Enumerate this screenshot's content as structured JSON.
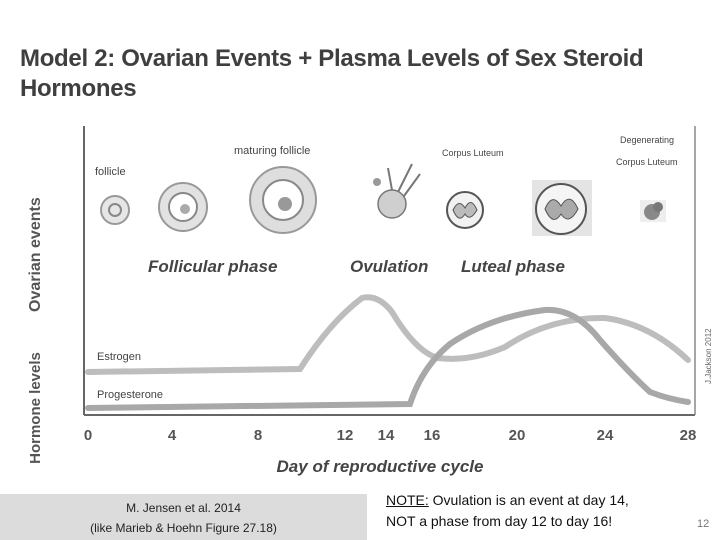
{
  "title": "Model 2: Ovarian Events + Plasma Levels of Sex Steroid Hormones",
  "figure": {
    "ovarian_axis_label": "Ovarian events",
    "hormone_axis_label": "Hormone levels",
    "stage_labels": {
      "follicle": "follicle",
      "maturing_follicle": "maturing follicle",
      "corpus_luteum": "Corpus Luteum",
      "degenerating_1": "Degenerating",
      "degenerating_2": "Corpus Luteum"
    },
    "phase_labels": {
      "follicular": "Follicular phase",
      "ovulation": "Ovulation",
      "luteal": "Luteal phase"
    },
    "series_labels": {
      "estrogen": "Estrogen",
      "progesterone": "Progesterone"
    },
    "credit": "J.Jackson 2012",
    "x_axis_label": "Day of reproductive cycle",
    "x_ticks": [
      "0",
      "4",
      "8",
      "12",
      "14",
      "16",
      "20",
      "24",
      "28"
    ]
  },
  "caption": {
    "line1": "M. Jensen et al. 2014",
    "line2": "(like Marieb & Hoehn Figure 27.18)"
  },
  "note": {
    "label": "NOTE:",
    "text1": " Ovulation is an event at day 14,",
    "text2": "NOT a phase from day 12 to day 16!"
  },
  "page_number": "12"
}
